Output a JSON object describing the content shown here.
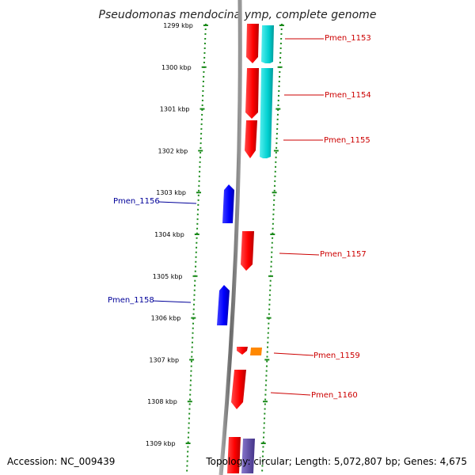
{
  "title": "Pseudomonas mendocina ymp, complete genome",
  "accession_text": "Accession: NC_009439",
  "topology_text": "Topology: circular; Length: 5,072,807 bp; Genes: 4,675",
  "colors": {
    "forward_gene": "#ff0000",
    "reverse_gene": "#0000ff",
    "cyan_feature": "#00d8d8",
    "orange_feature": "#ff8800",
    "purple_feature": "#6655aa",
    "ruler": "#1a8a1a",
    "backbone": "#777777",
    "label_forward": "#cc0000",
    "label_reverse": "#000099"
  },
  "ruler_ticks": [
    {
      "label": "1299 kbp"
    },
    {
      "label": "1300 kbp"
    },
    {
      "label": "1301 kbp"
    },
    {
      "label": "1302 kbp"
    },
    {
      "label": "1303 kbp"
    },
    {
      "label": "1304 kbp"
    },
    {
      "label": "1305 kbp"
    },
    {
      "label": "1306 kbp"
    },
    {
      "label": "1307 kbp"
    },
    {
      "label": "1308 kbp"
    },
    {
      "label": "1309 kbp"
    }
  ],
  "gene_labels": [
    {
      "name": "Pmen_1153",
      "strand": "forward"
    },
    {
      "name": "Pmen_1154",
      "strand": "forward"
    },
    {
      "name": "Pmen_1155",
      "strand": "forward"
    },
    {
      "name": "Pmen_1156",
      "strand": "reverse"
    },
    {
      "name": "Pmen_1157",
      "strand": "forward"
    },
    {
      "name": "Pmen_1158",
      "strand": "reverse"
    },
    {
      "name": "Pmen_1159",
      "strand": "forward"
    },
    {
      "name": "Pmen_1160",
      "strand": "forward"
    }
  ]
}
